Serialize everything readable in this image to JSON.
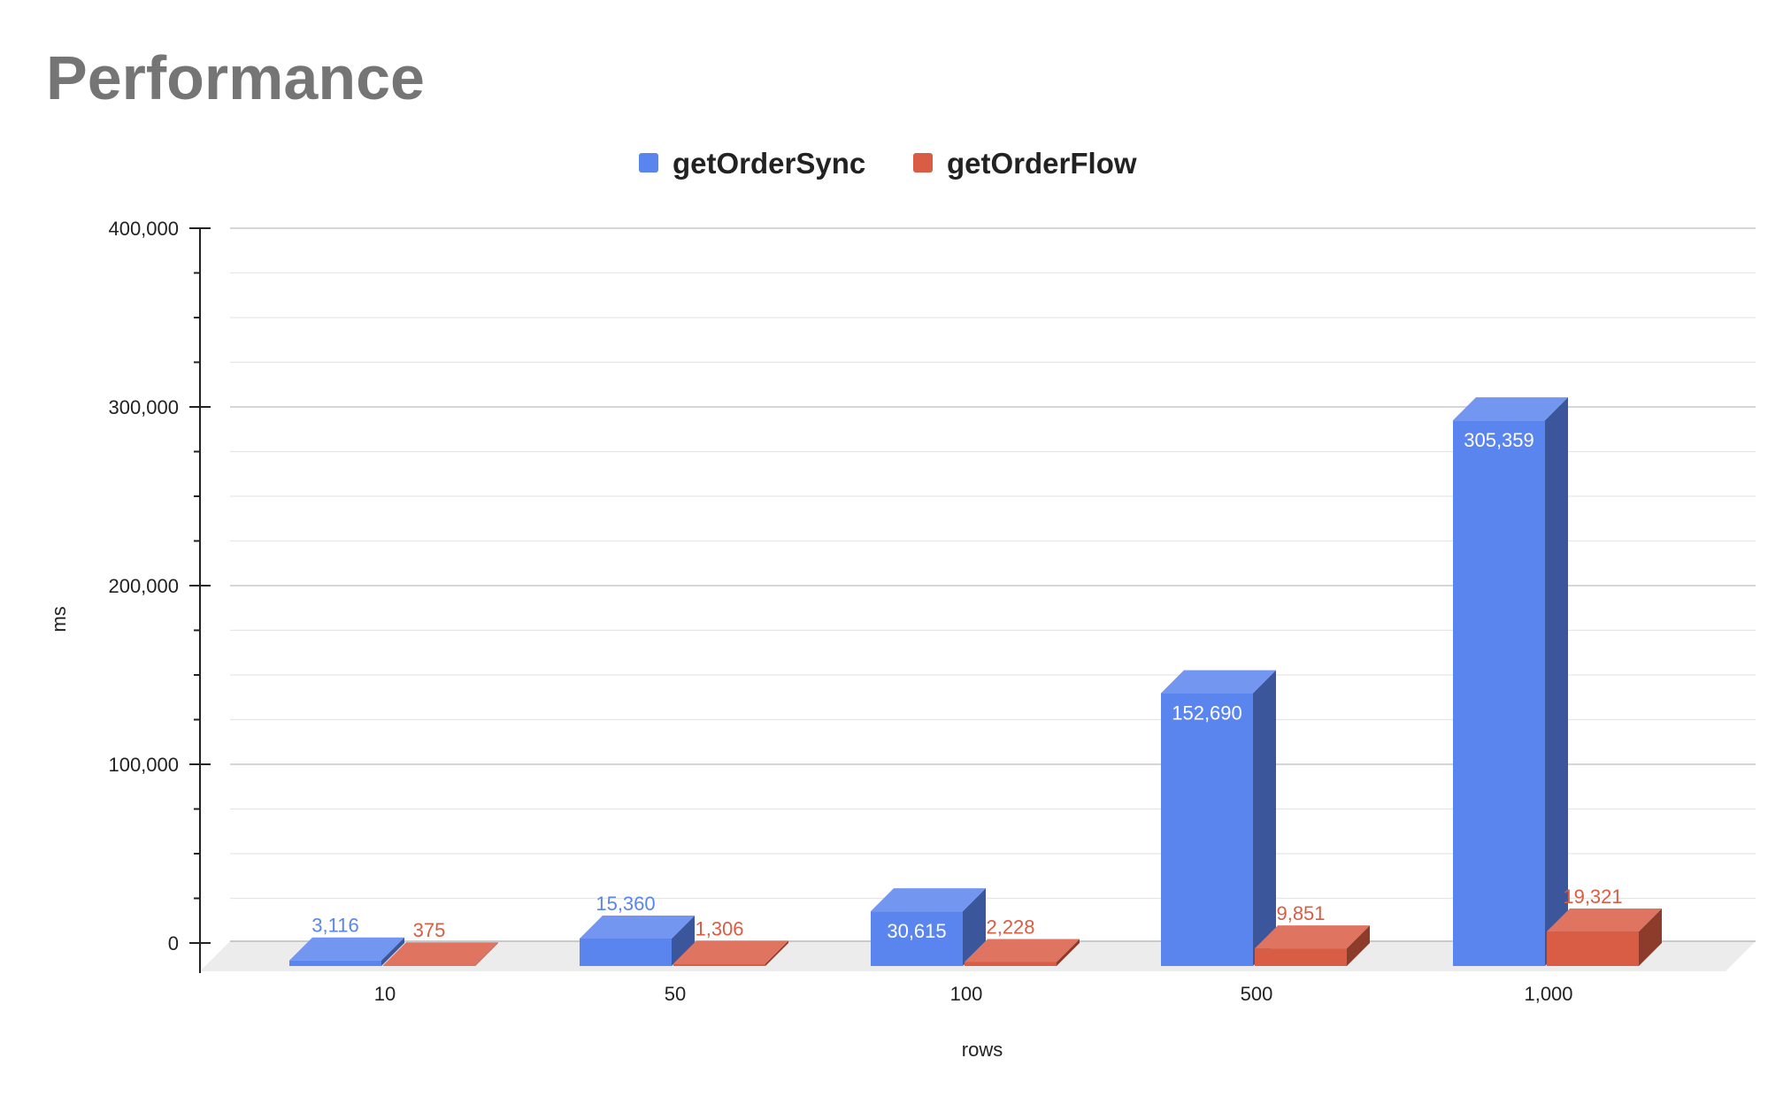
{
  "chart_data": {
    "type": "bar",
    "title": "Performance",
    "xlabel": "rows",
    "ylabel": "ms",
    "categories": [
      "10",
      "50",
      "100",
      "500",
      "1,000"
    ],
    "series": [
      {
        "name": "getOrderSync",
        "color": "#5a84ee",
        "values": [
          3116,
          15360,
          30615,
          152690,
          305359
        ],
        "labels": [
          "3,116",
          "15,360",
          "30,615",
          "152,690",
          "305,359"
        ]
      },
      {
        "name": "getOrderFlow",
        "color": "#d95c44",
        "values": [
          375,
          1306,
          2228,
          9851,
          19321
        ],
        "labels": [
          "375",
          "1,306",
          "2,228",
          "9,851",
          "19,321"
        ]
      }
    ],
    "ylim": [
      0,
      400000
    ],
    "yticks": [
      0,
      100000,
      200000,
      300000,
      400000
    ],
    "ytick_labels": [
      "0",
      "100,000",
      "200,000",
      "300,000",
      "400,000"
    ],
    "grid": true,
    "legend_position": "top-center",
    "style": "3d-bar"
  }
}
